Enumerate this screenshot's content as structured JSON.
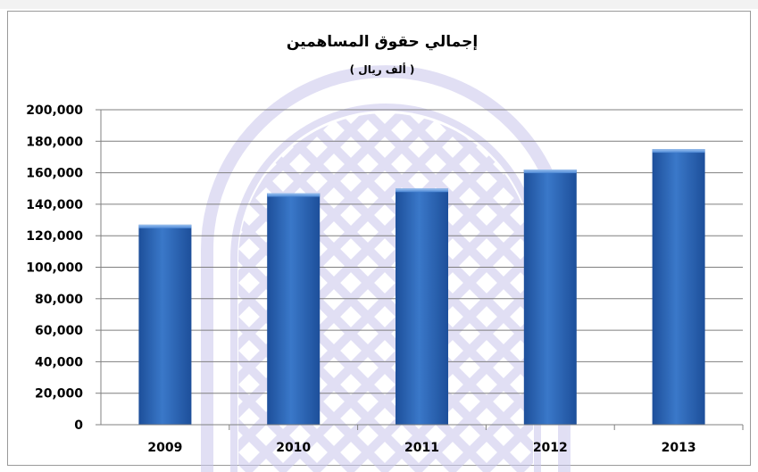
{
  "chart_data": {
    "type": "bar",
    "title": "إجمالي حقوق المساهمين",
    "subtitle": "( ألف ريال )",
    "xlabel": "",
    "ylabel": "",
    "categories": [
      "2009",
      "2010",
      "2011",
      "2012",
      "2013"
    ],
    "values": [
      127000,
      147000,
      150000,
      162000,
      175000
    ],
    "ylim": [
      0,
      200000
    ],
    "yticks": [
      0,
      20000,
      40000,
      60000,
      80000,
      100000,
      120000,
      140000,
      160000,
      180000,
      200000
    ],
    "ytick_labels": [
      "0",
      "20,000",
      "40,000",
      "60,000",
      "80,000",
      "100,000",
      "120,000",
      "140,000",
      "160,000",
      "180,000",
      "200,000"
    ],
    "grid": true,
    "legend": "none",
    "colors": {
      "bar_top": "#6fa0e0",
      "bar_mid": "#3a78c9",
      "bar_bottom": "#1d4f9a",
      "grid": "#7f7f7f",
      "watermark": "#c9c6ec"
    }
  }
}
